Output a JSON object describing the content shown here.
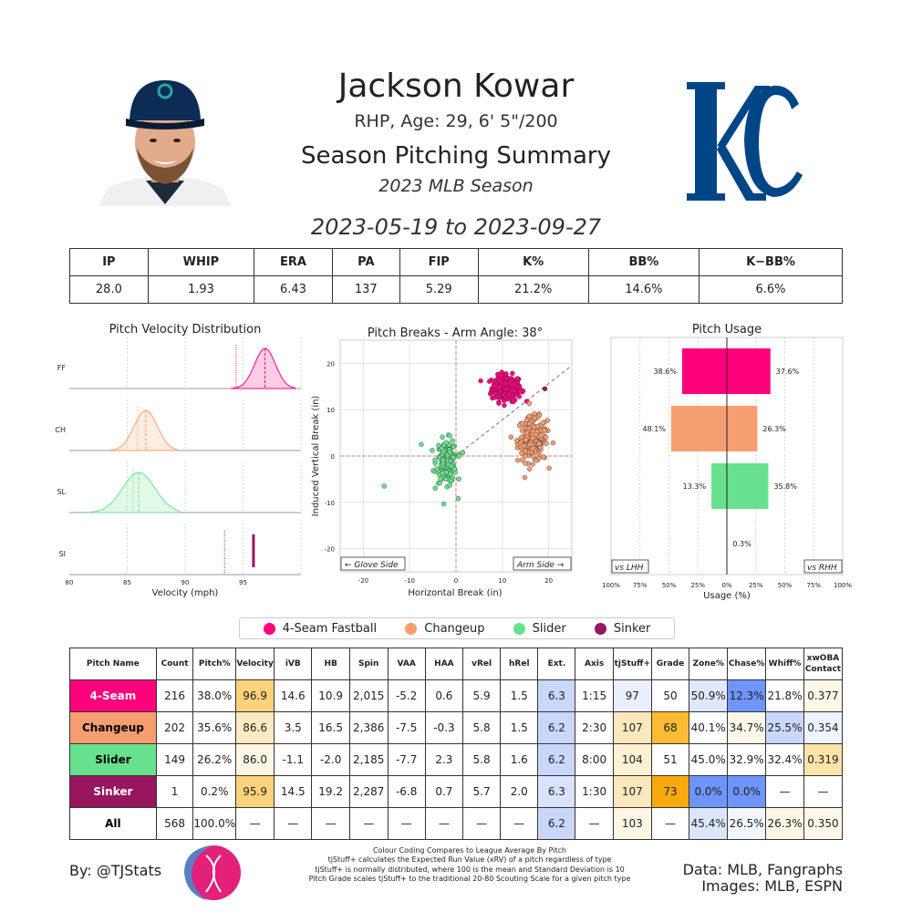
{
  "header": {
    "name": "Jackson Kowar",
    "bio": "RHP, Age: 29, 6' 5\"/200",
    "summary_title": "Season Pitching Summary",
    "season": "2023 MLB Season",
    "date_range": "2023-05-19 to 2023-09-27"
  },
  "season_stats": {
    "headers": [
      "IP",
      "WHIP",
      "ERA",
      "PA",
      "FIP",
      "K%",
      "BB%",
      "K−BB%"
    ],
    "values": [
      "28.0",
      "1.93",
      "6.43",
      "137",
      "5.29",
      "21.2%",
      "14.6%",
      "6.6%"
    ]
  },
  "pitch_colors": {
    "4-Seam": "#ff007d",
    "Changeup": "#f79e70",
    "Slider": "#67e18d",
    "Sinker": "#98165d"
  },
  "chart_data": [
    {
      "type": "area",
      "title": "Pitch Velocity Distribution",
      "xlabel": "Velocity (mph)",
      "xlim": [
        80,
        100
      ],
      "xticks": [
        80,
        85,
        90,
        95
      ],
      "series": [
        {
          "name": "FF",
          "key": "4-Seam",
          "mean": 96.9,
          "sd": 0.9,
          "min": 94.0,
          "max": 99.5,
          "league_avg": 94.4
        },
        {
          "name": "CH",
          "key": "Changeup",
          "mean": 86.6,
          "sd": 1.0,
          "min": 83.5,
          "max": 89.3,
          "league_avg": 85.9
        },
        {
          "name": "SL",
          "key": "Slider",
          "mean": 86.0,
          "sd": 1.4,
          "min": 81.8,
          "max": 89.5,
          "league_avg": 85.5
        },
        {
          "name": "SI",
          "key": "Sinker",
          "mean": 95.9,
          "sd": 0,
          "min": 95.9,
          "max": 95.9,
          "league_avg": 93.4
        }
      ]
    },
    {
      "type": "scatter",
      "title": "Pitch Breaks - Arm Angle: 38°",
      "xlabel": "Horizontal Break (in)",
      "ylabel": "Induced Vertical Break (in)",
      "xlim": [
        -25,
        25
      ],
      "ylim": [
        -25,
        25
      ],
      "xticks": [
        -20,
        -10,
        0,
        10,
        20
      ],
      "yticks": [
        -20,
        -10,
        0,
        10,
        20
      ],
      "arm_angle_deg": 38,
      "corner_labels": [
        "← Glove Side",
        "Arm Side →"
      ],
      "clusters": [
        {
          "key": "4-Seam",
          "count": 216,
          "hb_mean": 10.9,
          "ivb_mean": 14.6,
          "hb_sd": 1.6,
          "ivb_sd": 1.4
        },
        {
          "key": "Changeup",
          "count": 202,
          "hb_mean": 16.5,
          "ivb_mean": 3.5,
          "hb_sd": 1.6,
          "ivb_sd": 2.4
        },
        {
          "key": "Slider",
          "count": 149,
          "hb_mean": -2.0,
          "ivb_mean": -1.1,
          "hb_sd": 1.1,
          "ivb_sd": 2.3
        },
        {
          "key": "Sinker",
          "count": 1,
          "hb_mean": 19.2,
          "ivb_mean": 14.5,
          "hb_sd": 0,
          "ivb_sd": 0
        }
      ],
      "outliers": [
        {
          "key": "Slider",
          "hb": -15.5,
          "ivb": -6.5
        },
        {
          "key": "Slider",
          "hb": -7.5,
          "ivb": 2.5
        },
        {
          "key": "Slider",
          "hb": 0.5,
          "ivb": -9.2
        }
      ]
    },
    {
      "type": "bar",
      "title": "Pitch Usage",
      "xlabel": "Usage (%)",
      "xlim": [
        -100,
        100
      ],
      "xticks": [
        "100%",
        "75%",
        "50%",
        "25%",
        "0%",
        "25%",
        "50%",
        "75%",
        "100%"
      ],
      "side_labels": [
        "vs LHH",
        "vs RHH"
      ],
      "categories": [
        "4-Seam",
        "Changeup",
        "Slider",
        "Sinker"
      ],
      "series": [
        {
          "name": "vs LHH",
          "values": [
            38.6,
            48.1,
            13.3,
            0.0
          ]
        },
        {
          "name": "vs RHH",
          "values": [
            37.6,
            26.3,
            35.8,
            0.3
          ]
        }
      ],
      "data_labels_left": [
        "38.6%",
        "48.1%",
        "13.3%",
        ""
      ],
      "data_labels_right": [
        "37.6%",
        "26.3%",
        "35.8%",
        "0.3%"
      ]
    }
  ],
  "legend": [
    {
      "label": "4-Seam Fastball",
      "key": "4-Seam"
    },
    {
      "label": "Changeup",
      "key": "Changeup"
    },
    {
      "label": "Slider",
      "key": "Slider"
    },
    {
      "label": "Sinker",
      "key": "Sinker"
    }
  ],
  "pitch_table": {
    "headers": [
      "Pitch Name",
      "Count",
      "Pitch%",
      "Velocity",
      "iVB",
      "HB",
      "Spin",
      "VAA",
      "HAA",
      "vRel",
      "hRel",
      "Ext.",
      "Axis",
      "tjStuff+",
      "Grade",
      "Zone%",
      "Chase%",
      "Whiff%",
      "xwOBA\nContact"
    ],
    "rows": [
      {
        "key": "4-Seam",
        "name_color": "#ff007d",
        "name_text_color": "#ffffff",
        "cells": [
          "4-Seam",
          "216",
          "38.0%",
          "96.9",
          "14.6",
          "10.9",
          "2,015",
          "-5.2",
          "0.6",
          "5.9",
          "1.5",
          "6.3",
          "1:15",
          "97",
          "50",
          "50.9%",
          "12.3%",
          "21.8%",
          "0.377"
        ],
        "colors": [
          "",
          "",
          "",
          "#fdd27a",
          "",
          "",
          "",
          "",
          "",
          "",
          "",
          "#c9d7fb",
          "",
          "#e9efff",
          "",
          "#e0e8fd",
          "#6e95fb",
          "#ffffff",
          "#fff8e6"
        ]
      },
      {
        "key": "Changeup",
        "name_color": "#f79e70",
        "name_text_color": "#000000",
        "cells": [
          "Changeup",
          "202",
          "35.6%",
          "86.6",
          "3.5",
          "16.5",
          "2,386",
          "-7.5",
          "-0.3",
          "5.8",
          "1.5",
          "6.2",
          "2:30",
          "107",
          "68",
          "40.1%",
          "34.7%",
          "25.5%",
          "0.354"
        ],
        "colors": [
          "",
          "",
          "",
          "#feeac1",
          "",
          "",
          "",
          "",
          "",
          "",
          "",
          "#c9d7fb",
          "",
          "#fde8be",
          "#fbbb33",
          "#ffffff",
          "#fff8ea",
          "#c9d7fb",
          "#eef3ff"
        ]
      },
      {
        "key": "Slider",
        "name_color": "#67e18d",
        "name_text_color": "#000000",
        "cells": [
          "Slider",
          "149",
          "26.2%",
          "86.0",
          "-1.1",
          "-2.0",
          "2,185",
          "-7.7",
          "2.3",
          "5.8",
          "1.6",
          "6.2",
          "8:00",
          "104",
          "51",
          "45.0%",
          "32.9%",
          "32.4%",
          "0.319"
        ],
        "colors": [
          "",
          "",
          "",
          "#fff6e4",
          "",
          "",
          "",
          "",
          "",
          "",
          "",
          "#c9d7fb",
          "",
          "#fff1d2",
          "",
          "#ffffff",
          "#ffffff",
          "#ffffff",
          "#fde3a8"
        ]
      },
      {
        "key": "Sinker",
        "name_color": "#98165d",
        "name_text_color": "#ffffff",
        "cells": [
          "Sinker",
          "1",
          "0.2%",
          "95.9",
          "14.5",
          "19.2",
          "2,287",
          "-6.8",
          "0.7",
          "5.7",
          "2.0",
          "6.3",
          "1:30",
          "107",
          "73",
          "0.0%",
          "0.0%",
          "—",
          "—"
        ],
        "colors": [
          "",
          "",
          "",
          "#fdd27a",
          "",
          "",
          "",
          "",
          "",
          "",
          "",
          "#d9e3fd",
          "",
          "#fde8be",
          "#f8a90c",
          "#6e95fb",
          "#6e95fb",
          "",
          ""
        ]
      },
      {
        "key": "All",
        "name_color": "#ffffff",
        "name_text_color": "#000000",
        "cells": [
          "All",
          "568",
          "100.0%",
          "—",
          "—",
          "—",
          "—",
          "—",
          "—",
          "—",
          "—",
          "6.2",
          "—",
          "103",
          "—",
          "45.4%",
          "26.5%",
          "26.3%",
          "0.350"
        ],
        "colors": [
          "",
          "",
          "",
          "",
          "",
          "",
          "",
          "",
          "",
          "",
          "",
          "#c9d7fb",
          "",
          "#fff6e4",
          "",
          "#dbe5fd",
          "#f3f6fe",
          "#fff6e4",
          "#fff8ea"
        ]
      }
    ]
  },
  "footer": {
    "byline": "By: @TJStats",
    "notes": [
      "Colour Coding Compares to League Average By Pitch",
      "tjStuff+ calculates the Expected Run Value (xRV) of a pitch regardless of type",
      "tjStuff+ is normally distributed, where 100 is the mean and Standard Deviation is 10",
      "Pitch Grade scales tjStuff+ to the traditional 20-80 Scouting Scale for a given pitch type"
    ],
    "data_source": "Data: MLB, Fangraphs",
    "images_source": "Images: MLB, ESPN"
  },
  "logos": {
    "team_logo": "KC"
  }
}
